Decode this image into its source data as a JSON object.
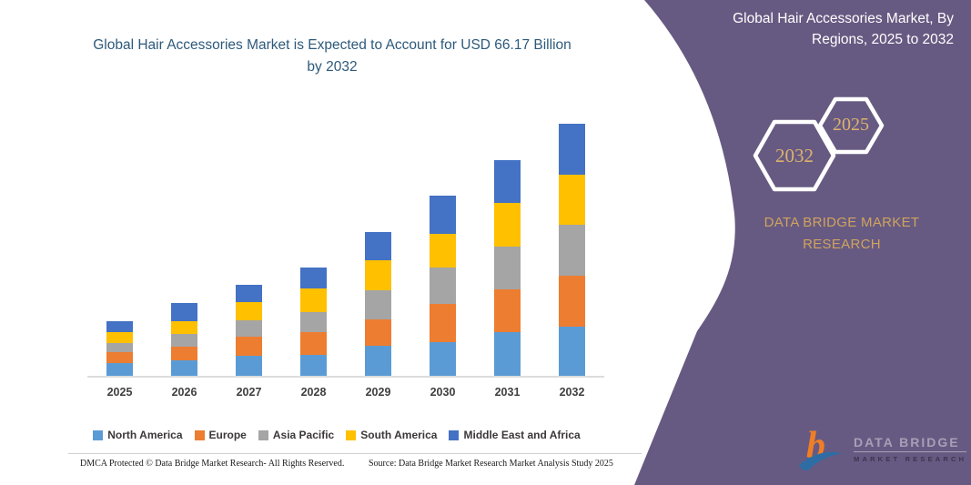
{
  "header": {
    "chart_title": "Global Hair Accessories Market is Expected to Account for USD 66.17 Billion by 2032"
  },
  "side_panel": {
    "title": "Global Hair Accessories Market, By Regions, 2025 to 2032",
    "hexagon_back_label": "2032",
    "hexagon_front_label": "2025",
    "brand_line1": "DATA BRIDGE MARKET",
    "brand_line2": "RESEARCH",
    "logo_title": "DATA BRIDGE",
    "logo_subtitle": "MARKET RESEARCH",
    "colors": {
      "panel_purple": "#675a82",
      "accent_gold": "#cfa35f",
      "hexagon_stroke": "#ffffff"
    }
  },
  "footer": {
    "left": "DMCA Protected © Data Bridge Market Research-  All Rights Reserved.",
    "right": "Source: Data Bridge Market Research  Market Analysis Study 2025"
  },
  "chart_data": {
    "type": "bar",
    "stacked": true,
    "title": "Global Hair Accessories Market is Expected to Account for USD 66.17 Billion by 2032",
    "unit": "USD Billion",
    "xlabel": "",
    "ylabel": "",
    "ylim": [
      0,
      67
    ],
    "gridlines": false,
    "legend_position": "bottom",
    "categories": [
      "2025",
      "2026",
      "2027",
      "2028",
      "2029",
      "2030",
      "2031",
      "2032"
    ],
    "series": [
      {
        "name": "North America",
        "color": "#5b9bd5",
        "values": [
          3.4,
          4.0,
          5.2,
          5.4,
          7.8,
          8.8,
          11.4,
          13.0
        ]
      },
      {
        "name": "Europe",
        "color": "#ed7d31",
        "values": [
          2.8,
          3.6,
          5.0,
          6.2,
          7.0,
          10.0,
          11.3,
          13.4
        ]
      },
      {
        "name": "Asia Pacific",
        "color": "#a5a5a5",
        "values": [
          2.4,
          3.5,
          4.3,
          5.2,
          7.7,
          9.6,
          11.3,
          13.3
        ]
      },
      {
        "name": "South America",
        "color": "#ffc000",
        "values": [
          2.8,
          3.4,
          4.8,
          6.2,
          8.0,
          9.0,
          11.5,
          13.3
        ]
      },
      {
        "name": "Middle East and Africa",
        "color": "#4472c4",
        "values": [
          3.0,
          4.6,
          4.6,
          5.6,
          7.2,
          10.0,
          11.2,
          13.2
        ]
      }
    ],
    "totals": [
      14.4,
      19.1,
      23.9,
      28.6,
      37.7,
      47.4,
      56.7,
      66.17
    ],
    "annotation": "Total reaches USD 66.17 Billion by 2032"
  }
}
